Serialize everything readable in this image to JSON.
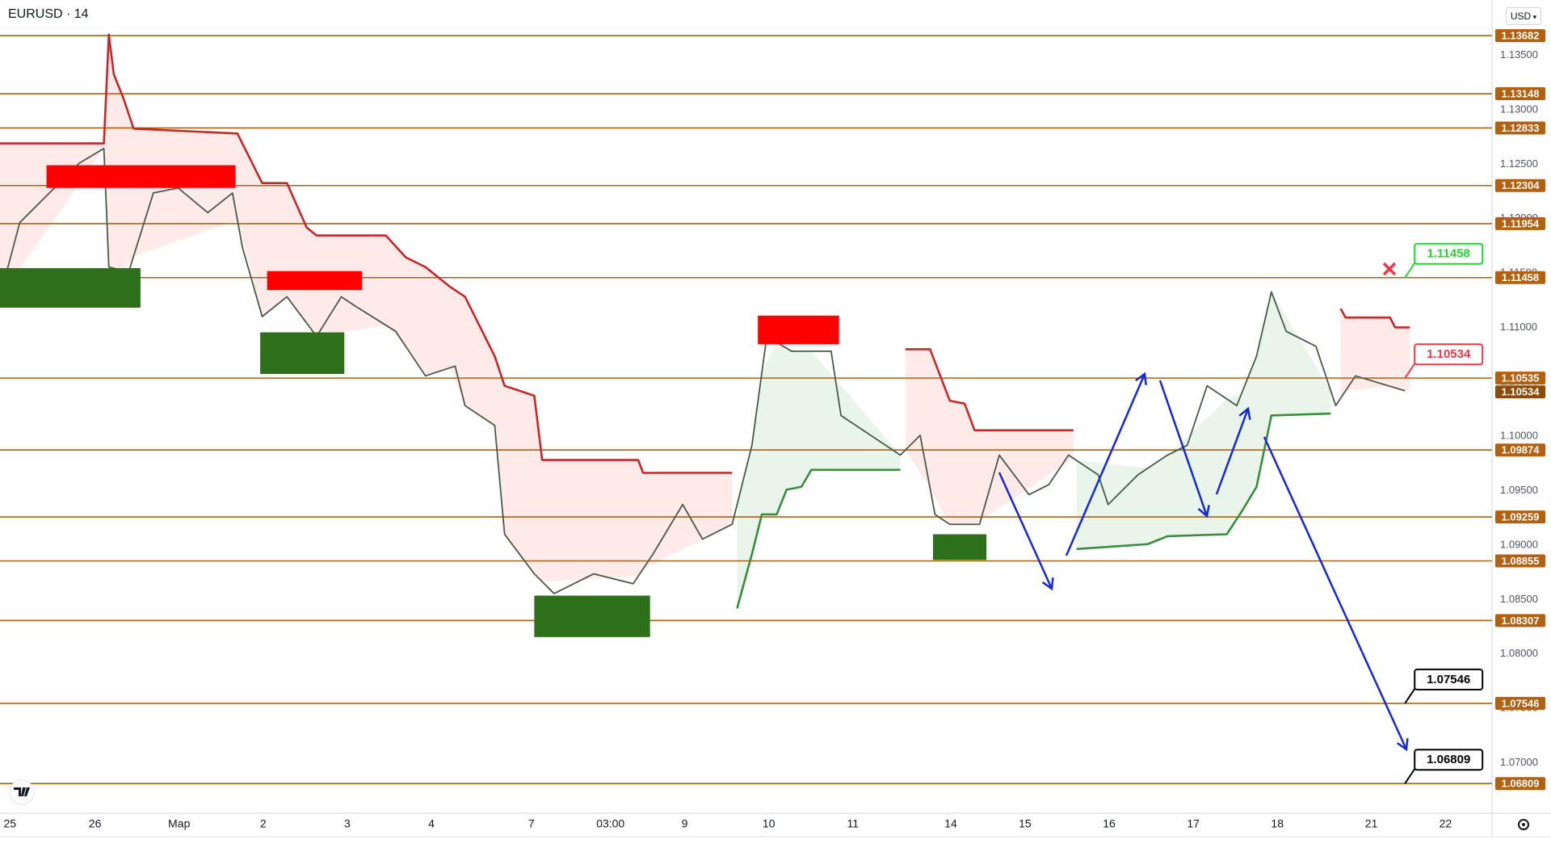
{
  "chart_data": {
    "type": "line",
    "title": "EURUSD · 14",
    "currency": "USD",
    "xlim": [
      0,
      301.6
    ],
    "ylim": [
      1.06536,
      1.14009
    ],
    "xticks": [
      {
        "value": 2,
        "label": "25"
      },
      {
        "value": 19.2,
        "label": "26"
      },
      {
        "value": 36.2,
        "label": "Мар"
      },
      {
        "value": 53.2,
        "label": "2"
      },
      {
        "value": 70.2,
        "label": "3"
      },
      {
        "value": 87.2,
        "label": "4"
      },
      {
        "value": 107.4,
        "label": "7"
      },
      {
        "value": 123.4,
        "label": "03:00"
      },
      {
        "value": 138.4,
        "label": "9"
      },
      {
        "value": 155.4,
        "label": "10"
      },
      {
        "value": 172.4,
        "label": "11"
      },
      {
        "value": 192.2,
        "label": "14"
      },
      {
        "value": 207.2,
        "label": "15"
      },
      {
        "value": 224.2,
        "label": "16"
      },
      {
        "value": 241.2,
        "label": "17"
      },
      {
        "value": 258.2,
        "label": "18"
      },
      {
        "value": 277.2,
        "label": "21"
      },
      {
        "value": 292.2,
        "label": "22"
      }
    ],
    "yticks": [
      {
        "value": 1.135,
        "label": "1.13500"
      },
      {
        "value": 1.13,
        "label": "1.13000"
      },
      {
        "value": 1.125,
        "label": "1.12500"
      },
      {
        "value": 1.12,
        "label": "1.12000"
      },
      {
        "value": 1.115,
        "label": "1.11500"
      },
      {
        "value": 1.11,
        "label": "1.11000"
      },
      {
        "value": 1.105,
        "label": "1.10500"
      },
      {
        "value": 1.1,
        "label": "1.10000"
      },
      {
        "value": 1.095,
        "label": "1.09500"
      },
      {
        "value": 1.09,
        "label": "1.09000"
      },
      {
        "value": 1.085,
        "label": "1.08500"
      },
      {
        "value": 1.08,
        "label": "1.08000"
      },
      {
        "value": 1.075,
        "label": "1.07500"
      },
      {
        "value": 1.07,
        "label": "1.07000"
      }
    ],
    "grid": false,
    "levels": {
      "color": "#b3600f",
      "values": [
        1.13682,
        1.13148,
        1.12833,
        1.12304,
        1.11954,
        1.11458,
        1.10535,
        1.09874,
        1.09259,
        1.08855,
        1.08307,
        1.07546,
        1.06809
      ]
    },
    "last_price": {
      "value": 1.10534,
      "color": "#8f4a08"
    },
    "series": [
      {
        "color": "#4a5a4a",
        "x": [
          0,
          4,
          10,
          16,
          21,
          22,
          26,
          31,
          36,
          42,
          47,
          49,
          53,
          58,
          64,
          69,
          72,
          80,
          86,
          92,
          94,
          100,
          102,
          108,
          112,
          120,
          128,
          132,
          138,
          142,
          148,
          152,
          155,
          160,
          168,
          170,
          176,
          182,
          186,
          189,
          192,
          198,
          202,
          208,
          212,
          216,
          222,
          224,
          230,
          236,
          240,
          244,
          250,
          254,
          257,
          260,
          266,
          270,
          274,
          284
        ],
        "values": [
          1.11282,
          1.11964,
          1.12236,
          1.12509,
          1.12645,
          1.11555,
          1.11509,
          1.12236,
          1.12282,
          1.12055,
          1.12236,
          1.11736,
          1.111,
          1.11282,
          1.10918,
          1.11282,
          1.11191,
          1.10964,
          1.10555,
          1.10645,
          1.10282,
          1.101,
          1.091,
          1.08736,
          1.08555,
          1.08736,
          1.08645,
          1.08918,
          1.09373,
          1.09055,
          1.09191,
          1.09918,
          1.10918,
          1.10782,
          1.10782,
          1.10191,
          1.10009,
          1.09827,
          1.10009,
          1.09282,
          1.09191,
          1.09191,
          1.09827,
          1.09464,
          1.09555,
          1.09827,
          1.09645,
          1.09373,
          1.09645,
          1.09827,
          1.09918,
          1.10464,
          1.10282,
          1.10736,
          1.11327,
          1.10964,
          1.10827,
          1.10282,
          1.10555,
          1.10418
        ]
      },
      {
        "color": "#c62828",
        "fill": "#ff5252",
        "x": [
          0,
          21,
          22,
          23,
          25,
          27,
          48,
          53,
          58,
          62,
          64,
          78,
          82,
          86,
          91,
          94,
          100,
          102,
          108,
          109.6,
          129,
          130,
          148,
          null,
          183,
          188,
          192,
          195,
          197,
          217,
          null,
          271,
          272,
          281,
          282,
          285
        ],
        "values": [
          1.12691,
          1.12691,
          1.13691,
          1.13327,
          1.131,
          1.12827,
          1.12782,
          1.12327,
          1.12327,
          1.11918,
          1.11845,
          1.11845,
          1.11645,
          1.11555,
          1.11373,
          1.11282,
          1.10736,
          1.10464,
          1.10373,
          1.09782,
          1.09782,
          1.09664,
          1.09664,
          null,
          1.108,
          1.108,
          1.10327,
          1.103,
          1.10055,
          1.10055,
          null,
          1.11173,
          1.11091,
          1.11091,
          1.11,
          1.11
        ]
      },
      {
        "color": "#388e3c",
        "fill": "#4caf50",
        "x": [
          149,
          152,
          154,
          157,
          159,
          162,
          164,
          182,
          null,
          217.6,
          232,
          236,
          248,
          251,
          254,
          257,
          269
        ],
        "values": [
          1.08418,
          1.08918,
          1.09282,
          1.09282,
          1.09509,
          1.09536,
          1.09691,
          1.09691,
          null,
          1.08964,
          1.09009,
          1.09082,
          1.091,
          1.09309,
          1.09536,
          1.10191,
          1.10209
        ]
      }
    ],
    "zones": [
      {
        "color": "#ff0000",
        "x": [
          9.4,
          47.6
        ],
        "y": [
          1.12282,
          1.12491
        ]
      },
      {
        "color": "#ff0000",
        "x": [
          54,
          73.2
        ],
        "y": [
          1.11345,
          1.11518
        ]
      },
      {
        "color": "#ff0000",
        "x": [
          153.2,
          169.6
        ],
        "y": [
          1.10845,
          1.11109
        ]
      },
      {
        "color": "#2e6f1c",
        "x": [
          0,
          28.4
        ],
        "y": [
          1.11182,
          1.11545
        ]
      },
      {
        "color": "#2e6f1c",
        "x": [
          52.6,
          69.6
        ],
        "y": [
          1.10573,
          1.10955
        ]
      },
      {
        "color": "#2e6f1c",
        "x": [
          108,
          131.4
        ],
        "y": [
          1.08155,
          1.08536
        ]
      },
      {
        "color": "#2e6f1c",
        "x": [
          188.6,
          199.4
        ],
        "y": [
          1.08864,
          1.091
        ]
      }
    ],
    "tags": [
      {
        "value": 1.11458,
        "color": "#1ed630"
      },
      {
        "value": 1.10534,
        "color": "#f23645"
      },
      {
        "value": 1.07546,
        "color": "#000000"
      },
      {
        "value": 1.06809,
        "color": "#000000"
      }
    ]
  }
}
